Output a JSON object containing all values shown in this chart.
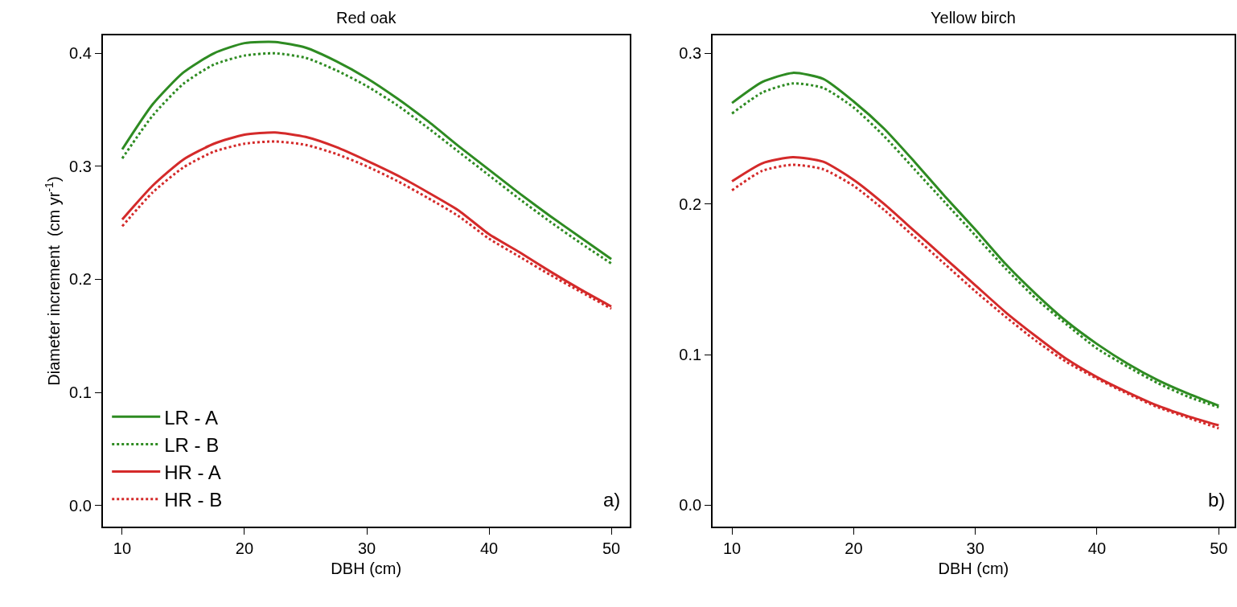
{
  "chart_data": [
    {
      "type": "line",
      "title": "Red oak",
      "xlabel": "DBH (cm)",
      "ylabel": "Diameter increment  (cm yr$^{-1}$)",
      "x": [
        10,
        12.5,
        15,
        17.5,
        20,
        22.5,
        25,
        27.5,
        30,
        32.5,
        35,
        37.5,
        40,
        42.5,
        45,
        47.5,
        50
      ],
      "xlim": [
        8.4,
        51.5
      ],
      "xticks": [
        10,
        20,
        30,
        40,
        50
      ],
      "ylim": [
        -0.019,
        0.416
      ],
      "yticks": [
        {
          "value": 0,
          "label": "0.0"
        },
        0.1,
        0.2,
        0.3,
        0.4
      ],
      "legend": "bottom left",
      "marker": "none",
      "annotations": [
        "a)"
      ],
      "series": [
        {
          "name": "LR - A",
          "color": "#2e8b22",
          "line_style": "solid",
          "values": [
            0.315,
            0.355,
            0.383,
            0.4,
            0.409,
            0.41,
            0.405,
            0.393,
            0.378,
            0.36,
            0.34,
            0.318,
            0.297,
            0.276,
            0.256,
            0.237,
            0.218
          ]
        },
        {
          "name": "LR - B",
          "color": "#2e8b22",
          "line_style": "dotted",
          "values": [
            0.307,
            0.345,
            0.373,
            0.39,
            0.398,
            0.4,
            0.396,
            0.385,
            0.371,
            0.354,
            0.334,
            0.313,
            0.292,
            0.271,
            0.251,
            0.232,
            0.214
          ]
        },
        {
          "name": "HR - A",
          "color": "#d42a2a",
          "line_style": "solid",
          "values": [
            0.253,
            0.283,
            0.306,
            0.32,
            0.328,
            0.33,
            0.326,
            0.317,
            0.305,
            0.292,
            0.277,
            0.261,
            0.24,
            0.224,
            0.207,
            0.191,
            0.176
          ]
        },
        {
          "name": "HR - B",
          "color": "#d42a2a",
          "line_style": "dotted",
          "values": [
            0.247,
            0.277,
            0.299,
            0.313,
            0.32,
            0.322,
            0.319,
            0.311,
            0.3,
            0.287,
            0.272,
            0.256,
            0.236,
            0.22,
            0.204,
            0.189,
            0.174
          ]
        }
      ]
    },
    {
      "type": "line",
      "title": "Yellow birch",
      "xlabel": "DBH (cm)",
      "x": [
        10,
        12.5,
        15,
        17.5,
        20,
        22.5,
        25,
        27.5,
        30,
        32.5,
        35,
        37.5,
        40,
        42.5,
        45,
        47.5,
        50
      ],
      "xlim": [
        8.4,
        51.3
      ],
      "xticks": [
        10,
        20,
        30,
        40,
        50
      ],
      "ylim": [
        -0.0144,
        0.312
      ],
      "yticks": [
        {
          "value": 0,
          "label": "0.0"
        },
        0.1,
        0.2,
        0.3
      ],
      "marker": "none",
      "annotations": [
        "b)"
      ],
      "series": [
        {
          "color": "#2e8b22",
          "line_style": "solid",
          "values": [
            0.267,
            0.281,
            0.287,
            0.283,
            0.268,
            0.25,
            0.228,
            0.205,
            0.183,
            0.16,
            0.14,
            0.122,
            0.107,
            0.094,
            0.083,
            0.074,
            0.066
          ]
        },
        {
          "color": "#2e8b22",
          "line_style": "dotted",
          "values": [
            0.26,
            0.274,
            0.28,
            0.277,
            0.264,
            0.245,
            0.223,
            0.201,
            0.179,
            0.157,
            0.137,
            0.12,
            0.104,
            0.092,
            0.081,
            0.072,
            0.065
          ]
        },
        {
          "color": "#d42a2a",
          "line_style": "solid",
          "values": [
            0.215,
            0.227,
            0.231,
            0.228,
            0.216,
            0.2,
            0.182,
            0.164,
            0.146,
            0.128,
            0.112,
            0.097,
            0.085,
            0.075,
            0.066,
            0.059,
            0.053
          ]
        },
        {
          "color": "#d42a2a",
          "line_style": "dotted",
          "values": [
            0.209,
            0.222,
            0.226,
            0.223,
            0.212,
            0.196,
            0.178,
            0.16,
            0.142,
            0.125,
            0.109,
            0.095,
            0.084,
            0.074,
            0.065,
            0.058,
            0.051
          ]
        }
      ]
    }
  ]
}
